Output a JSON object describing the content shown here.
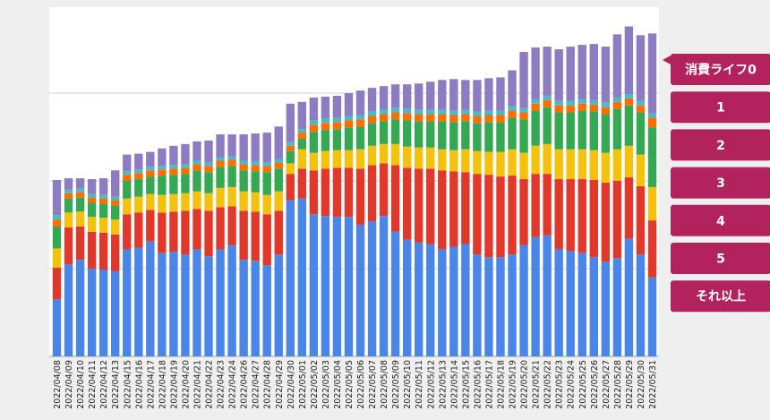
{
  "chart_data": {
    "type": "bar",
    "stacked": true,
    "categories": [
      "2022/04/08",
      "2022/04/09",
      "2022/04/10",
      "2022/04/11",
      "2022/04/12",
      "2022/04/13",
      "2022/04/15",
      "2022/04/16",
      "2022/04/17",
      "2022/04/18",
      "2022/04/19",
      "2022/04/20",
      "2022/04/21",
      "2022/04/22",
      "2022/04/23",
      "2022/04/24",
      "2022/04/26",
      "2022/04/27",
      "2022/04/28",
      "2022/04/29",
      "2022/04/30",
      "2022/05/01",
      "2022/05/02",
      "2022/05/03",
      "2022/05/04",
      "2022/05/05",
      "2022/05/06",
      "2022/05/07",
      "2022/05/08",
      "2022/05/09",
      "2022/05/10",
      "2022/05/11",
      "2022/05/12",
      "2022/05/13",
      "2022/05/14",
      "2022/05/15",
      "2022/05/16",
      "2022/05/17",
      "2022/05/18",
      "2022/05/19",
      "2022/05/20",
      "2022/05/21",
      "2022/05/22",
      "2022/05/23",
      "2022/05/24",
      "2022/05/25",
      "2022/05/26",
      "2022/05/27",
      "2022/05/28",
      "2022/05/29",
      "2022/05/30",
      "2022/05/31"
    ],
    "series": [
      {
        "name": "それ以上",
        "color": "#4a86e8",
        "values": [
          65,
          105,
          110,
          100,
          99,
          97,
          122,
          124,
          131,
          118,
          119,
          116,
          122,
          114,
          122,
          127,
          110,
          109,
          104,
          116,
          178,
          180,
          162,
          160,
          159,
          159,
          150,
          154,
          160,
          142,
          133,
          130,
          128,
          122,
          125,
          128,
          116,
          113,
          113,
          116,
          127,
          136,
          138,
          122,
          120,
          118,
          113,
          108,
          112,
          134,
          116,
          90
        ]
      },
      {
        "name": "5",
        "color": "#e0392b",
        "values": [
          36,
          42,
          38,
          42,
          42,
          42,
          40,
          40,
          36,
          46,
          46,
          50,
          46,
          52,
          48,
          44,
          56,
          56,
          58,
          50,
          30,
          34,
          50,
          54,
          56,
          56,
          64,
          64,
          60,
          76,
          82,
          84,
          86,
          90,
          86,
          82,
          92,
          94,
          92,
          90,
          75,
          72,
          70,
          80,
          82,
          84,
          88,
          90,
          88,
          70,
          78,
          65
        ]
      },
      {
        "name": "4",
        "color": "#f4c20d",
        "values": [
          22,
          17,
          17,
          17,
          17,
          17,
          18,
          18,
          18,
          20,
          20,
          20,
          20,
          20,
          22,
          22,
          22,
          22,
          22,
          22,
          12,
          22,
          20,
          20,
          20,
          20,
          22,
          22,
          22,
          24,
          24,
          24,
          24,
          24,
          24,
          26,
          26,
          26,
          28,
          30,
          30,
          32,
          34,
          34,
          34,
          34,
          34,
          34,
          36,
          36,
          36,
          38
        ]
      },
      {
        "name": "3",
        "color": "#34a853",
        "values": [
          25,
          16,
          16,
          16,
          16,
          16,
          20,
          20,
          20,
          22,
          22,
          22,
          24,
          24,
          24,
          24,
          24,
          24,
          26,
          26,
          14,
          12,
          24,
          24,
          24,
          26,
          26,
          26,
          26,
          28,
          30,
          30,
          30,
          32,
          32,
          32,
          32,
          34,
          34,
          36,
          38,
          40,
          42,
          42,
          42,
          44,
          44,
          44,
          46,
          46,
          48,
          68
        ]
      },
      {
        "name": "2",
        "color": "#ff6d01",
        "values": [
          8,
          6,
          6,
          6,
          6,
          6,
          7,
          7,
          7,
          7,
          7,
          7,
          7,
          7,
          7,
          7,
          7,
          7,
          7,
          7,
          6,
          7,
          8,
          8,
          8,
          8,
          8,
          8,
          8,
          8,
          8,
          8,
          8,
          8,
          8,
          8,
          8,
          8,
          8,
          8,
          8,
          8,
          8,
          8,
          8,
          8,
          8,
          8,
          8,
          8,
          8,
          11
        ]
      },
      {
        "name": "1",
        "color": "#46bdc6",
        "values": [
          5,
          4,
          4,
          4,
          4,
          4,
          4,
          4,
          4,
          4,
          4,
          4,
          4,
          4,
          4,
          4,
          4,
          4,
          4,
          4,
          4,
          4,
          5,
          5,
          5,
          5,
          5,
          5,
          5,
          5,
          5,
          5,
          5,
          5,
          5,
          5,
          5,
          5,
          5,
          5,
          5,
          5,
          5,
          5,
          5,
          5,
          5,
          5,
          5,
          5,
          5,
          5
        ]
      },
      {
        "name": "消費ライフ0",
        "color": "#8e7cc3",
        "values": [
          40,
          13,
          12,
          17,
          19,
          30,
          19,
          18,
          17,
          20,
          22,
          23,
          22,
          25,
          26,
          25,
          30,
          32,
          34,
          37,
          44,
          31,
          26,
          25,
          25,
          26,
          28,
          27,
          27,
          27,
          28,
          30,
          32,
          34,
          36,
          34,
          36,
          37,
          38,
          41,
          64,
          59,
          56,
          59,
          62,
          62,
          64,
          64,
          72,
          77,
          75,
          91
        ]
      }
    ],
    "ylim": [
      0,
      400
    ],
    "yticks": [
      100,
      200,
      300
    ],
    "grid": true,
    "legend_position": "right",
    "legend_color": "#b2225c"
  }
}
